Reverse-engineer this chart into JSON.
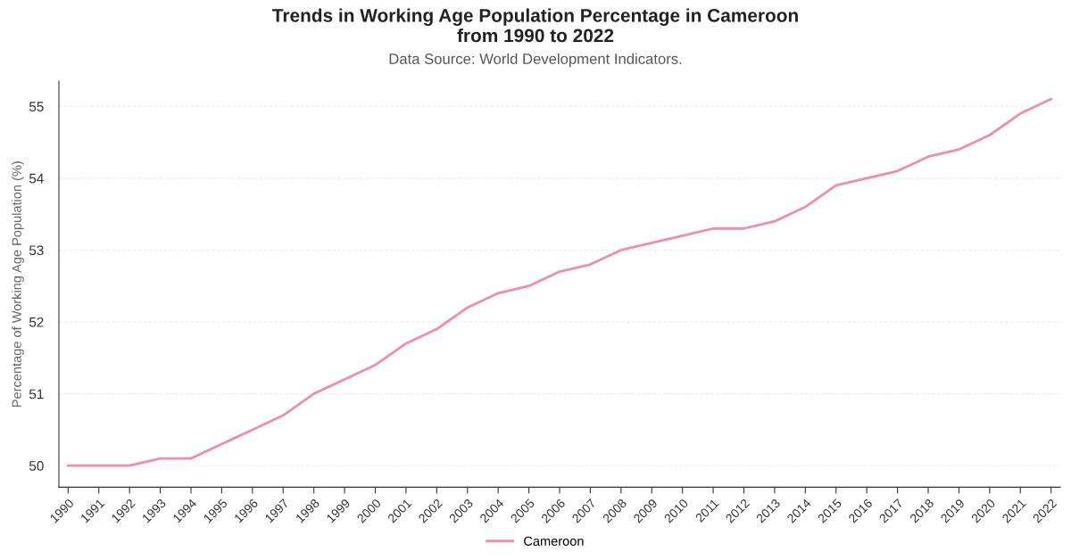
{
  "chart_data": {
    "type": "line",
    "title": "Trends in Working Age Population Percentage in Cameroon\nfrom 1990 to 2022",
    "subtitle": "Data Source: World Development Indicators.",
    "ylabel": "Percentage of Working Age Population (%)",
    "categories": [
      "1990",
      "1991",
      "1992",
      "1993",
      "1994",
      "1995",
      "1996",
      "1997",
      "1998",
      "1999",
      "2000",
      "2001",
      "2002",
      "2003",
      "2004",
      "2005",
      "2006",
      "2007",
      "2008",
      "2009",
      "2010",
      "2011",
      "2012",
      "2013",
      "2014",
      "2015",
      "2016",
      "2017",
      "2018",
      "2019",
      "2020",
      "2021",
      "2022"
    ],
    "series": [
      {
        "name": "Cameroon",
        "color": "#f08cb0",
        "values": [
          50.0,
          50.0,
          50.0,
          50.1,
          50.1,
          50.3,
          50.5,
          50.7,
          51.0,
          51.2,
          51.4,
          51.7,
          51.9,
          52.2,
          52.4,
          52.5,
          52.7,
          52.8,
          53.0,
          53.1,
          53.2,
          53.3,
          53.3,
          53.4,
          53.6,
          53.9,
          54.0,
          54.1,
          54.3,
          54.4,
          54.6,
          54.9,
          55.1
        ]
      }
    ],
    "ylim": [
      49.7,
      55.35
    ],
    "yticks": [
      50,
      51,
      52,
      53,
      54,
      55
    ],
    "grid": "y",
    "legend": "bottom",
    "marker": "none",
    "line_style": "solid"
  }
}
